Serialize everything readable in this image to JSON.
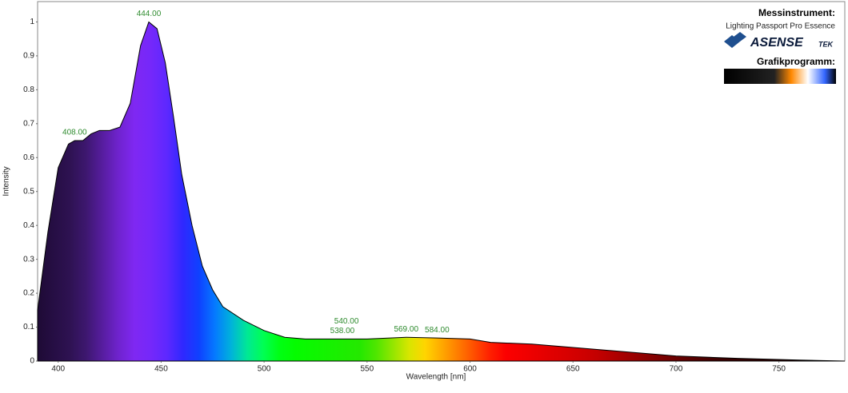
{
  "chart_data": {
    "type": "area",
    "x_label": "Wavelength [nm]",
    "y_label": "Intensity",
    "x": [
      390,
      395,
      400,
      405,
      408,
      412,
      416,
      420,
      425,
      430,
      435,
      440,
      444,
      448,
      452,
      456,
      460,
      465,
      470,
      475,
      480,
      490,
      500,
      510,
      520,
      538,
      550,
      569,
      584,
      600,
      610,
      630,
      650,
      670,
      700,
      730,
      760,
      782
    ],
    "values": [
      0.15,
      0.38,
      0.57,
      0.64,
      0.65,
      0.65,
      0.67,
      0.68,
      0.68,
      0.69,
      0.76,
      0.93,
      1.0,
      0.98,
      0.88,
      0.72,
      0.55,
      0.4,
      0.28,
      0.21,
      0.16,
      0.12,
      0.09,
      0.07,
      0.065,
      0.065,
      0.065,
      0.07,
      0.068,
      0.065,
      0.055,
      0.05,
      0.04,
      0.03,
      0.015,
      0.008,
      0.003,
      0
    ],
    "xlim": [
      390,
      782
    ],
    "ylim": [
      0,
      1.06
    ],
    "xticks": [
      400,
      450,
      500,
      550,
      600,
      650,
      700,
      750
    ],
    "yticks": [
      0,
      0.1,
      0.2,
      0.3,
      0.4,
      0.5,
      0.6,
      0.7,
      0.8,
      0.9,
      1
    ],
    "annotation_color": "#2e8b2e",
    "peak_labels": [
      {
        "value": 408,
        "label": "408.00"
      },
      {
        "value": 444,
        "label": "444.00"
      },
      {
        "value": 538,
        "label": "538.00"
      },
      {
        "value": 540,
        "label": "540.00"
      },
      {
        "value": 569,
        "label": "569.00"
      },
      {
        "value": 584,
        "label": "584.00"
      }
    ]
  },
  "info_panel": {
    "instrument_heading": "Messinstrument:",
    "instrument": "Lighting Passport Pro Essence",
    "logo": "ASENSE",
    "logo_suffix": "TEK",
    "software_heading": "Grafikprogramm:"
  }
}
